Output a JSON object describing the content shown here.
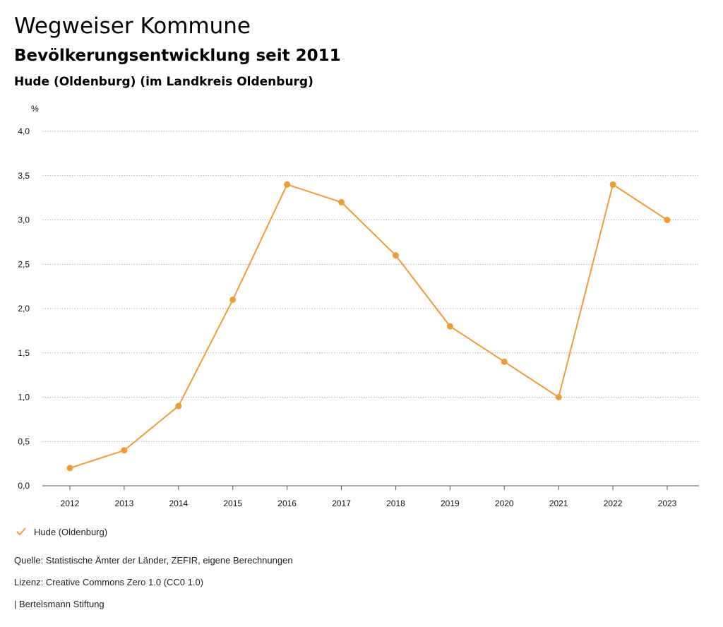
{
  "header": {
    "title": "Wegweiser Kommune",
    "subtitle": "Bevölkerungsentwicklung seit 2011",
    "region": "Hude (Oldenburg) (im Landkreis Oldenburg)"
  },
  "chart_data": {
    "type": "line",
    "ylabel": "%",
    "xlabel": "",
    "x": [
      "2012",
      "2013",
      "2014",
      "2015",
      "2016",
      "2017",
      "2018",
      "2019",
      "2020",
      "2021",
      "2022",
      "2023"
    ],
    "ylim": [
      0,
      4
    ],
    "yticks": [
      "0,0",
      "0,5",
      "1,0",
      "1,5",
      "2,0",
      "2,5",
      "3,0",
      "3,5",
      "4,0"
    ],
    "grid": true,
    "series": [
      {
        "name": "Hude (Oldenburg)",
        "color": "#ee9c38",
        "values": [
          0.2,
          0.4,
          0.9,
          2.1,
          3.4,
          3.2,
          2.6,
          1.8,
          1.4,
          1.0,
          3.4,
          3.0
        ]
      }
    ],
    "legend_position": "bottom-left"
  },
  "legend": {
    "label": "Hude (Oldenburg)",
    "icon": "check-icon"
  },
  "footer": {
    "source": "Quelle: Statistische Ämter der Länder, ZEFIR, eigene Berechnungen",
    "license": "Lizenz: Creative Commons Zero 1.0 (CC0 1.0)",
    "publisher": "| Bertelsmann Stiftung"
  }
}
